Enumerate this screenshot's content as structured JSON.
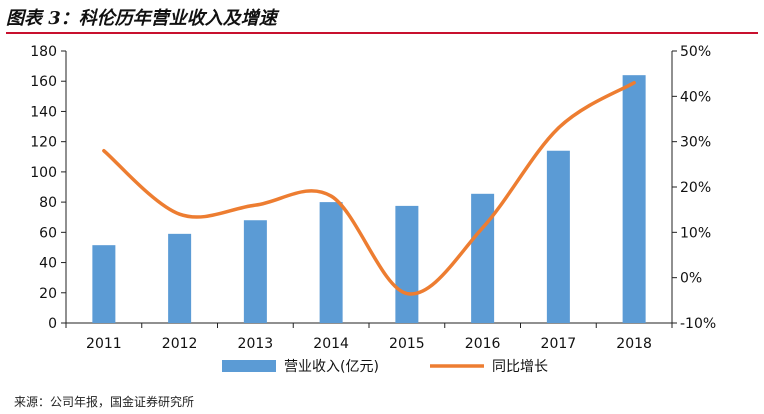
{
  "title": "图表 3：科伦历年营业收入及增速",
  "source": "来源：公司年报，国金证券研究所",
  "colors": {
    "bar": "#5b9bd5",
    "line": "#ed7d31",
    "title_rule": "#c8102e"
  },
  "chart_data": {
    "type": "bar",
    "categories": [
      "2011",
      "2012",
      "2013",
      "2014",
      "2015",
      "2016",
      "2017",
      "2018"
    ],
    "series": [
      {
        "name": "营业收入(亿元)",
        "type": "bar",
        "axis": "left",
        "values": [
          51.5,
          59,
          68,
          80,
          77.5,
          85.5,
          114,
          164
        ]
      },
      {
        "name": "同比增长",
        "type": "line",
        "axis": "right",
        "values": [
          28,
          14,
          16,
          18,
          -3.5,
          11,
          33,
          43
        ]
      }
    ],
    "y_left": {
      "min": 0,
      "max": 180,
      "ticks": [
        "0",
        "20",
        "40",
        "60",
        "80",
        "100",
        "120",
        "140",
        "160",
        "180"
      ]
    },
    "y_right": {
      "min": -10,
      "max": 50,
      "ticks": [
        "-10%",
        "0%",
        "10%",
        "20%",
        "30%",
        "40%",
        "50%"
      ]
    },
    "grid": false,
    "legend_position": "bottom"
  }
}
